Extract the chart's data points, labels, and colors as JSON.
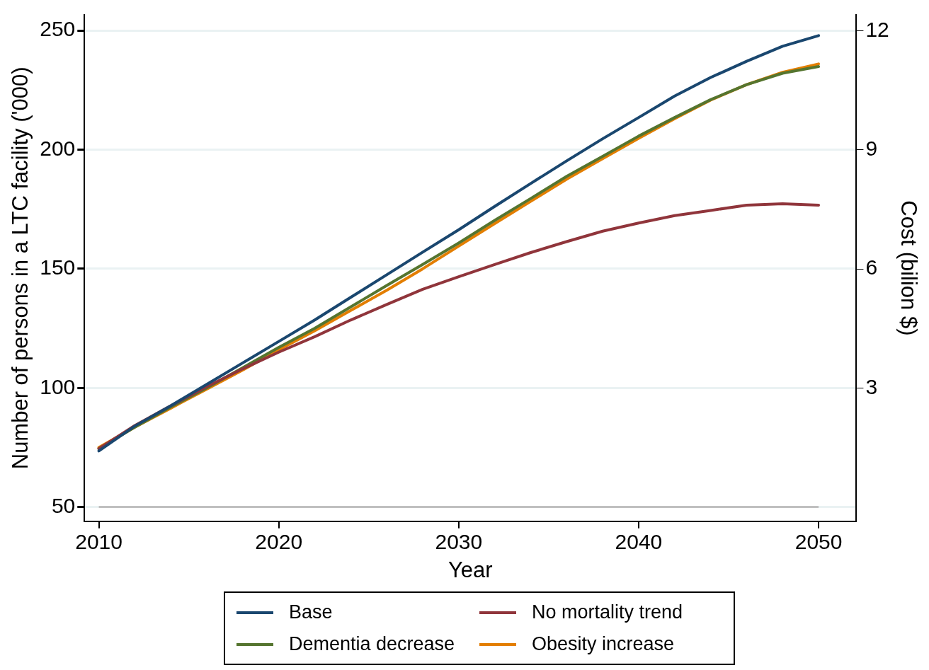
{
  "chart_data": {
    "type": "line",
    "xlabel": "Year",
    "ylabel": "Number of persons in a LTC facility ('000)",
    "y2label": "Cost (bilion $)",
    "x": [
      2010,
      2012,
      2014,
      2016,
      2018,
      2020,
      2022,
      2024,
      2026,
      2028,
      2030,
      2032,
      2034,
      2036,
      2038,
      2040,
      2042,
      2044,
      2046,
      2048,
      2050
    ],
    "xlim": [
      2009.2,
      2052.1
    ],
    "xticks": [
      2010,
      2020,
      2030,
      2040,
      2050
    ],
    "ylim": [
      44,
      256.6
    ],
    "yticks": [
      50,
      100,
      150,
      200,
      250
    ],
    "y2lim": [
      -0.36,
      12.4
    ],
    "y2ticks": [
      3,
      6,
      9,
      12
    ],
    "grid": "y",
    "legend": "bottom",
    "marker": "none",
    "line_style": "solid",
    "ref_lines": [
      {
        "axis": "y",
        "value": 50,
        "color": "#c0c0c0"
      }
    ],
    "series": [
      {
        "name": "Base",
        "color": "#1a476f",
        "values": [
          73.5,
          84,
          92.5,
          101.5,
          110.5,
          119.5,
          128.5,
          138,
          147.5,
          157,
          166.4,
          176.2,
          185.8,
          195.3,
          204.6,
          213.5,
          222.5,
          230.3,
          237.1,
          243.4,
          247.9
        ]
      },
      {
        "name": "No mortality trend",
        "color": "#90353b",
        "values": [
          74.5,
          84.2,
          92.5,
          100.5,
          108,
          115,
          121.5,
          128.5,
          135,
          141.4,
          146.7,
          151.8,
          156.8,
          161.4,
          165.8,
          169.2,
          172.3,
          174.5,
          176.7,
          177.3,
          176.7
        ]
      },
      {
        "name": "Dementia decrease",
        "color": "#55752f",
        "values": [
          74.5,
          83.5,
          92,
          100,
          108.5,
          117,
          125,
          134,
          143,
          151.8,
          160.8,
          170.3,
          179.5,
          188.8,
          197.2,
          205.7,
          213.5,
          221,
          227.3,
          232.1,
          234.9
        ]
      },
      {
        "name": "Obesity increase",
        "color": "#e37e00",
        "values": [
          75,
          83.5,
          91.5,
          99.5,
          107.5,
          116,
          124,
          132.5,
          141,
          150,
          159.5,
          169,
          178.3,
          187.6,
          196.2,
          204.8,
          213,
          220.8,
          227.3,
          232.5,
          236
        ]
      }
    ]
  }
}
